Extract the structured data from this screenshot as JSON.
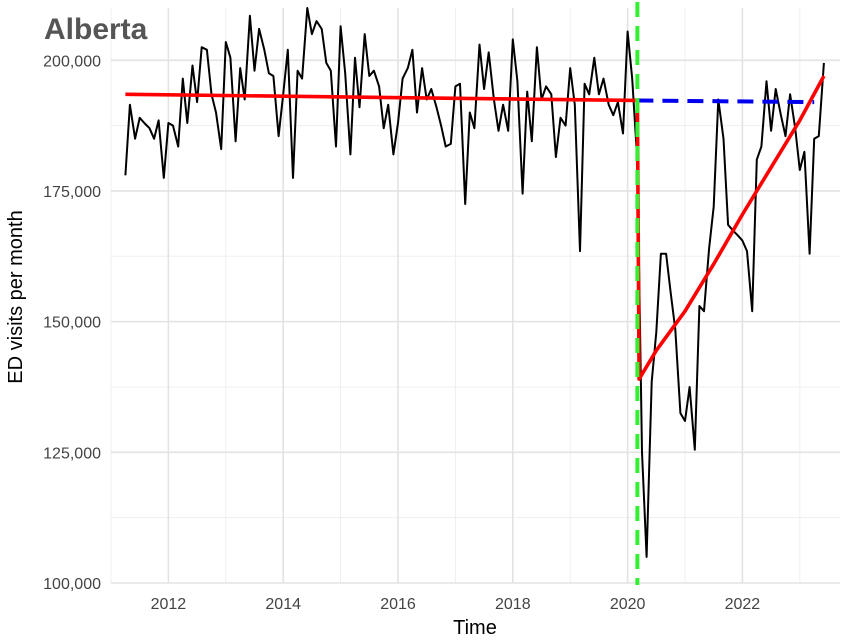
{
  "chart_data": {
    "type": "line",
    "title": "Alberta",
    "xlabel": "Time",
    "ylabel": "ED visits per month",
    "xlim": [
      2011.0,
      2023.7
    ],
    "ylim": [
      100000,
      210000
    ],
    "x_ticks": [
      2012,
      2014,
      2016,
      2018,
      2020,
      2022
    ],
    "y_ticks": [
      100000,
      125000,
      150000,
      175000,
      200000
    ],
    "y_tick_labels": [
      "100,000",
      "125,000",
      "150,000",
      "175,000",
      "200,000"
    ],
    "grid": true,
    "intervention_x": 2020.17,
    "series": [
      {
        "role": "observed",
        "color": "#000000",
        "style": "solid",
        "points": [
          [
            2011.25,
            178000
          ],
          [
            2011.33,
            191500
          ],
          [
            2011.42,
            185000
          ],
          [
            2011.5,
            189000
          ],
          [
            2011.58,
            188000
          ],
          [
            2011.67,
            187000
          ],
          [
            2011.75,
            185000
          ],
          [
            2011.83,
            188500
          ],
          [
            2011.92,
            177500
          ],
          [
            2012.0,
            188000
          ],
          [
            2012.08,
            187500
          ],
          [
            2012.17,
            183500
          ],
          [
            2012.25,
            196500
          ],
          [
            2012.33,
            188000
          ],
          [
            2012.42,
            199000
          ],
          [
            2012.5,
            192000
          ],
          [
            2012.58,
            202500
          ],
          [
            2012.67,
            202000
          ],
          [
            2012.75,
            193500
          ],
          [
            2012.83,
            190000
          ],
          [
            2012.92,
            183000
          ],
          [
            2013.0,
            203500
          ],
          [
            2013.08,
            200500
          ],
          [
            2013.17,
            184500
          ],
          [
            2013.25,
            198500
          ],
          [
            2013.33,
            192500
          ],
          [
            2013.42,
            208500
          ],
          [
            2013.5,
            198000
          ],
          [
            2013.58,
            206000
          ],
          [
            2013.67,
            202000
          ],
          [
            2013.75,
            197500
          ],
          [
            2013.83,
            197000
          ],
          [
            2013.92,
            185500
          ],
          [
            2014.0,
            193500
          ],
          [
            2014.08,
            202000
          ],
          [
            2014.17,
            177500
          ],
          [
            2014.25,
            198000
          ],
          [
            2014.33,
            196500
          ],
          [
            2014.42,
            210000
          ],
          [
            2014.5,
            205000
          ],
          [
            2014.58,
            207500
          ],
          [
            2014.67,
            206000
          ],
          [
            2014.75,
            199500
          ],
          [
            2014.83,
            198000
          ],
          [
            2014.92,
            183500
          ],
          [
            2015.0,
            206500
          ],
          [
            2015.08,
            197500
          ],
          [
            2015.17,
            182000
          ],
          [
            2015.25,
            200500
          ],
          [
            2015.33,
            191000
          ],
          [
            2015.42,
            205000
          ],
          [
            2015.5,
            197000
          ],
          [
            2015.58,
            198000
          ],
          [
            2015.67,
            195000
          ],
          [
            2015.75,
            187000
          ],
          [
            2015.83,
            191500
          ],
          [
            2015.92,
            182000
          ],
          [
            2016.0,
            188000
          ],
          [
            2016.08,
            196500
          ],
          [
            2016.17,
            198500
          ],
          [
            2016.25,
            202000
          ],
          [
            2016.33,
            190000
          ],
          [
            2016.42,
            198500
          ],
          [
            2016.5,
            192500
          ],
          [
            2016.58,
            194500
          ],
          [
            2016.67,
            191000
          ],
          [
            2016.75,
            187500
          ],
          [
            2016.83,
            183500
          ],
          [
            2016.92,
            184000
          ],
          [
            2017.0,
            195000
          ],
          [
            2017.08,
            195500
          ],
          [
            2017.17,
            172500
          ],
          [
            2017.25,
            190000
          ],
          [
            2017.33,
            187000
          ],
          [
            2017.42,
            203000
          ],
          [
            2017.5,
            194500
          ],
          [
            2017.58,
            201500
          ],
          [
            2017.67,
            192500
          ],
          [
            2017.75,
            186500
          ],
          [
            2017.83,
            191500
          ],
          [
            2017.92,
            186500
          ],
          [
            2018.0,
            204000
          ],
          [
            2018.08,
            196000
          ],
          [
            2018.17,
            174500
          ],
          [
            2018.25,
            194000
          ],
          [
            2018.33,
            184500
          ],
          [
            2018.42,
            202500
          ],
          [
            2018.5,
            192500
          ],
          [
            2018.58,
            195000
          ],
          [
            2018.67,
            193500
          ],
          [
            2018.75,
            181500
          ],
          [
            2018.83,
            189000
          ],
          [
            2018.92,
            187500
          ],
          [
            2019.0,
            198500
          ],
          [
            2019.08,
            191500
          ],
          [
            2019.17,
            163500
          ],
          [
            2019.25,
            195500
          ],
          [
            2019.33,
            193500
          ],
          [
            2019.42,
            200500
          ],
          [
            2019.5,
            193500
          ],
          [
            2019.58,
            196500
          ],
          [
            2019.67,
            191500
          ],
          [
            2019.75,
            189500
          ],
          [
            2019.83,
            192000
          ],
          [
            2019.92,
            186000
          ],
          [
            2020.0,
            205500
          ],
          [
            2020.08,
            196500
          ],
          [
            2020.17,
            180500
          ],
          [
            2020.25,
            125000
          ],
          [
            2020.33,
            105000
          ],
          [
            2020.42,
            138500
          ],
          [
            2020.5,
            148000
          ],
          [
            2020.58,
            163000
          ],
          [
            2020.67,
            163000
          ],
          [
            2020.75,
            155500
          ],
          [
            2020.83,
            148500
          ],
          [
            2020.92,
            132500
          ],
          [
            2021.0,
            131000
          ],
          [
            2021.08,
            137500
          ],
          [
            2021.17,
            125500
          ],
          [
            2021.25,
            153000
          ],
          [
            2021.33,
            152000
          ],
          [
            2021.42,
            164000
          ],
          [
            2021.5,
            172000
          ],
          [
            2021.58,
            192500
          ],
          [
            2021.67,
            185000
          ],
          [
            2021.75,
            168500
          ],
          [
            2021.83,
            167500
          ],
          [
            2021.92,
            166500
          ],
          [
            2022.0,
            165500
          ],
          [
            2022.08,
            163500
          ],
          [
            2022.17,
            152000
          ],
          [
            2022.25,
            181000
          ],
          [
            2022.33,
            183500
          ],
          [
            2022.42,
            196000
          ],
          [
            2022.5,
            186500
          ],
          [
            2022.58,
            194500
          ],
          [
            2022.67,
            189500
          ],
          [
            2022.75,
            185500
          ],
          [
            2022.83,
            193500
          ],
          [
            2022.92,
            187000
          ],
          [
            2023.0,
            179000
          ],
          [
            2023.08,
            182500
          ],
          [
            2023.17,
            163000
          ],
          [
            2023.25,
            185000
          ],
          [
            2023.33,
            185500
          ],
          [
            2023.42,
            199500
          ]
        ]
      },
      {
        "role": "fitted",
        "color": "#ff0000",
        "style": "solid",
        "points": [
          [
            2011.25,
            193500
          ],
          [
            2020.17,
            192300
          ],
          [
            2020.2,
            139000
          ],
          [
            2020.5,
            144500
          ],
          [
            2021.0,
            152000
          ],
          [
            2021.5,
            161000
          ],
          [
            2022.0,
            170500
          ],
          [
            2022.5,
            179500
          ],
          [
            2023.0,
            188500
          ],
          [
            2023.42,
            197000
          ]
        ]
      },
      {
        "role": "counterfactual",
        "color": "#0000ee",
        "style": "dashed",
        "points": [
          [
            2020.17,
            192300
          ],
          [
            2023.25,
            192000
          ]
        ]
      }
    ]
  }
}
